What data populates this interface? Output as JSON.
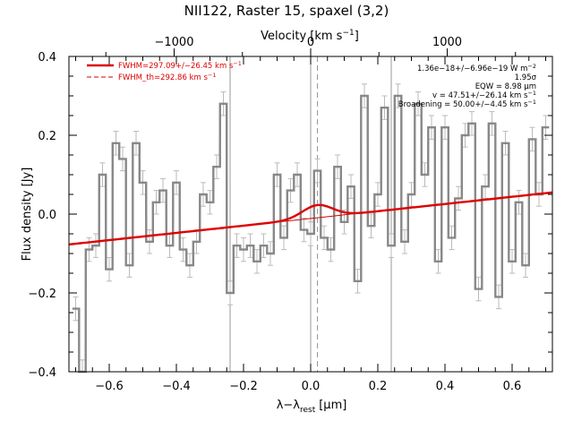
{
  "chart_data": {
    "type": "line",
    "title": "NII122, Raster 15, spaxel (3,2)",
    "xlabel": "λ−λ",
    "xlabel_sub": "rest",
    "xlabel_unit": "[μm]",
    "ylabel": "Flux density [Jy]",
    "top_axis_label": "Velocity [km s",
    "top_axis_label_sup": "−1",
    "top_axis_label_end": "]",
    "xlim": [
      -0.72,
      0.72
    ],
    "ylim": [
      -0.4,
      0.4
    ],
    "x_ticks": [
      -0.6,
      -0.4,
      -0.2,
      0.0,
      0.2,
      0.4,
      0.6
    ],
    "x_tick_labels": [
      "−0.6",
      "−0.4",
      "−0.2",
      "0.0",
      "0.2",
      "0.4",
      "0.6"
    ],
    "y_ticks": [
      -0.4,
      -0.2,
      0.0,
      0.2,
      0.4
    ],
    "y_tick_labels": [
      "−0.4",
      "−0.2",
      "0.0",
      "0.2",
      "0.4"
    ],
    "top_ticks": [
      -1000,
      0,
      1000
    ],
    "top_tick_labels": [
      "−1000",
      "0",
      "1000"
    ],
    "velocity_per_micron": 2459,
    "vertical_lines": [
      -0.24,
      0.0,
      0.24
    ],
    "dashed_line_x": 0.02,
    "legend": [
      {
        "label": "FWHM=297.09+/−26.45 km s",
        "sup": "−1",
        "style": "solid",
        "color": "#dd0000"
      },
      {
        "label": "FWHM_th=292.86 km s",
        "sup": "−1",
        "style": "dashed",
        "color": "#dd0000"
      }
    ],
    "annotations": [
      {
        "text": "1.36e−18+/−6.96e−19 W m",
        "sup": "−2"
      },
      {
        "text": "1.95σ",
        "sup": ""
      },
      {
        "text": "EQW = 8.98 μm",
        "sup": ""
      },
      {
        "text": "v = 47.51+/−26.14 km s",
        "sup": "−1"
      },
      {
        "text": "Broadening = 50.00+/−4.45 km s",
        "sup": "−1"
      }
    ],
    "colors": {
      "spectrum": "#888888",
      "errorbar": "#bbbbbb",
      "fit": "#dd0000",
      "vline": "#999999"
    },
    "continuum": {
      "x0": -0.72,
      "y0": -0.077,
      "x1": 0.72,
      "y1": 0.055
    },
    "gaussian": {
      "center": 0.02,
      "amplitude": 0.032,
      "sigma": 0.045
    },
    "series": [
      {
        "name": "spectrum",
        "x": [
          -0.7,
          -0.68,
          -0.66,
          -0.64,
          -0.62,
          -0.6,
          -0.58,
          -0.56,
          -0.54,
          -0.52,
          -0.5,
          -0.48,
          -0.46,
          -0.44,
          -0.42,
          -0.4,
          -0.38,
          -0.36,
          -0.34,
          -0.32,
          -0.3,
          -0.28,
          -0.26,
          -0.24,
          -0.22,
          -0.2,
          -0.18,
          -0.16,
          -0.14,
          -0.12,
          -0.1,
          -0.08,
          -0.06,
          -0.04,
          -0.02,
          0.0,
          0.02,
          0.04,
          0.06,
          0.08,
          0.1,
          0.12,
          0.14,
          0.16,
          0.18,
          0.2,
          0.22,
          0.24,
          0.26,
          0.28,
          0.3,
          0.32,
          0.34,
          0.36,
          0.38,
          0.4,
          0.42,
          0.44,
          0.46,
          0.48,
          0.5,
          0.52,
          0.54,
          0.56,
          0.58,
          0.6,
          0.62,
          0.64,
          0.66,
          0.68,
          0.7
        ],
        "y": [
          -0.24,
          -0.4,
          -0.09,
          -0.08,
          0.1,
          -0.14,
          0.18,
          0.14,
          -0.13,
          0.18,
          0.08,
          -0.07,
          0.03,
          0.06,
          -0.08,
          0.08,
          -0.09,
          -0.13,
          -0.07,
          0.05,
          0.03,
          0.12,
          0.28,
          -0.2,
          -0.08,
          -0.09,
          -0.08,
          -0.12,
          -0.08,
          -0.1,
          0.1,
          -0.06,
          0.06,
          0.1,
          -0.04,
          -0.05,
          0.11,
          -0.06,
          -0.09,
          0.12,
          -0.02,
          0.07,
          -0.17,
          0.3,
          -0.03,
          0.05,
          0.27,
          -0.08,
          0.3,
          -0.07,
          0.05,
          0.28,
          0.1,
          0.22,
          -0.12,
          0.22,
          -0.06,
          0.04,
          0.2,
          0.23,
          -0.19,
          0.07,
          0.23,
          -0.21,
          0.18,
          -0.12,
          0.03,
          -0.13,
          0.19,
          0.05,
          0.22
        ],
        "err": [
          0.03,
          0.03,
          0.03,
          0.03,
          0.03,
          0.03,
          0.03,
          0.03,
          0.03,
          0.03,
          0.03,
          0.03,
          0.03,
          0.03,
          0.03,
          0.03,
          0.03,
          0.03,
          0.03,
          0.03,
          0.03,
          0.03,
          0.03,
          0.03,
          0.03,
          0.03,
          0.03,
          0.03,
          0.03,
          0.03,
          0.03,
          0.03,
          0.03,
          0.03,
          0.03,
          0.03,
          0.03,
          0.03,
          0.03,
          0.03,
          0.03,
          0.03,
          0.03,
          0.03,
          0.03,
          0.03,
          0.03,
          0.03,
          0.03,
          0.03,
          0.03,
          0.03,
          0.03,
          0.03,
          0.03,
          0.03,
          0.03,
          0.03,
          0.03,
          0.03,
          0.03,
          0.03,
          0.03,
          0.03,
          0.03,
          0.03,
          0.03,
          0.03,
          0.03,
          0.03,
          0.03
        ]
      }
    ]
  }
}
